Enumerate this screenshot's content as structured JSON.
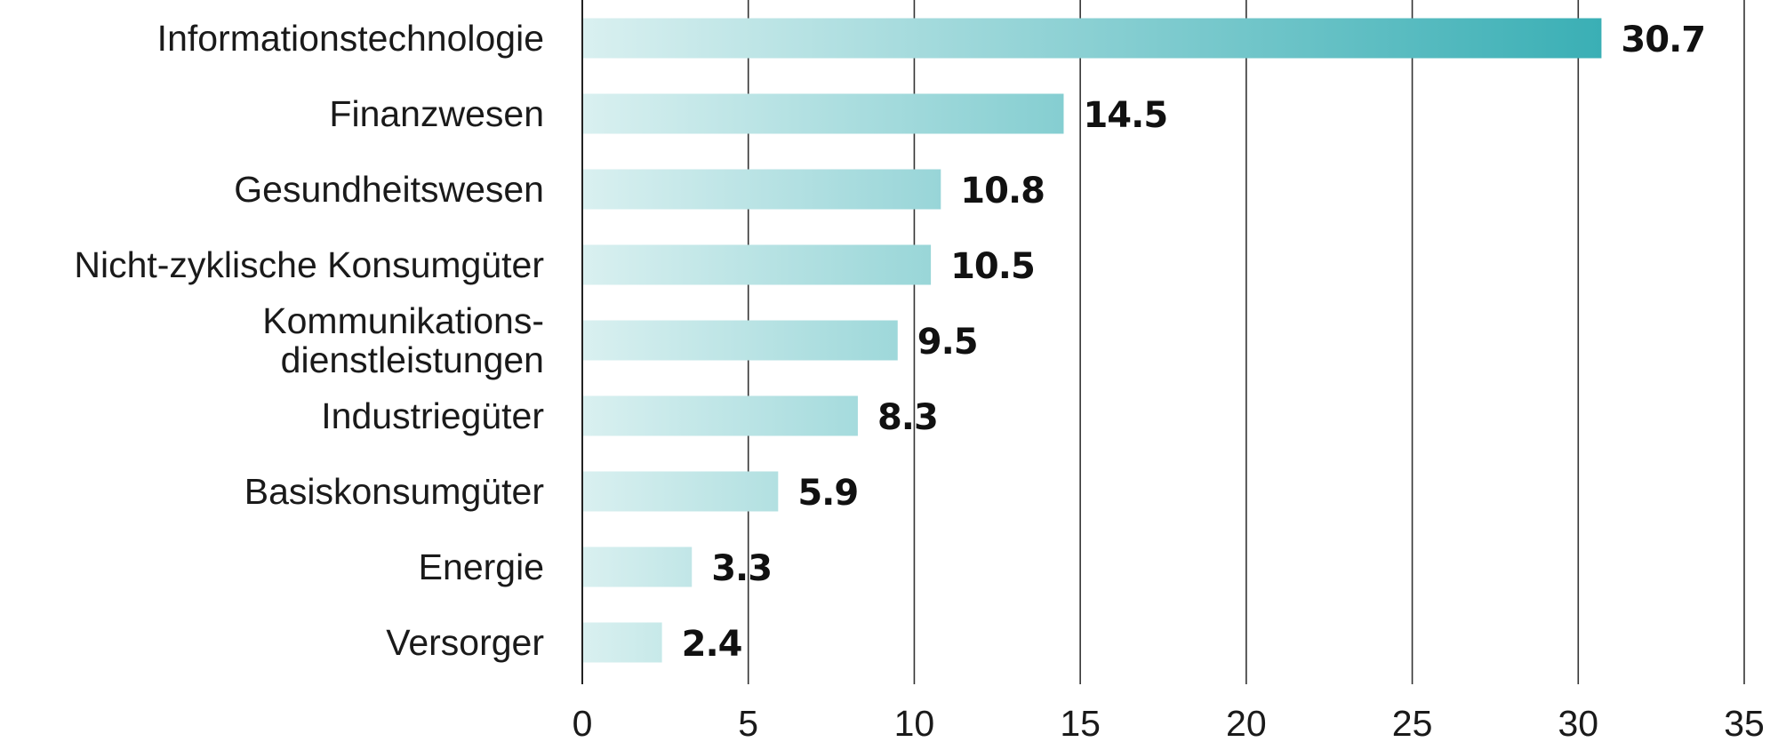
{
  "chart_data": {
    "type": "bar",
    "orientation": "horizontal",
    "title": "",
    "xlabel": "",
    "ylabel": "",
    "categories": [
      [
        "Informationstechnologie"
      ],
      [
        "Finanzwesen"
      ],
      [
        "Gesundheitswesen"
      ],
      [
        "Nicht-zyklische Konsumgüter"
      ],
      [
        "Kommunikations-",
        "dienstleistungen"
      ],
      [
        "Industriegüter"
      ],
      [
        "Basiskonsumgüter"
      ],
      [
        "Energie"
      ],
      [
        "Versorger"
      ]
    ],
    "values": [
      30.7,
      14.5,
      10.8,
      10.5,
      9.5,
      8.3,
      5.9,
      3.3,
      2.4
    ],
    "value_labels": [
      "30.7",
      "14.5",
      "10.8",
      "10.5",
      "9.5",
      "8.3",
      "5.9",
      "3.3",
      "2.4"
    ],
    "xlim": [
      0,
      35
    ],
    "xticks": [
      0,
      5,
      10,
      15,
      20,
      25,
      30,
      35
    ],
    "xtick_labels": [
      "0",
      "5",
      "10",
      "15",
      "20",
      "25",
      "30",
      "35"
    ],
    "grid": "vertical",
    "legend": "none",
    "colors": {
      "bar_start": "#d9f0f0",
      "bar_end_max": "#3aafb5",
      "grid": "#333333",
      "text": "#1a1a1a"
    }
  }
}
